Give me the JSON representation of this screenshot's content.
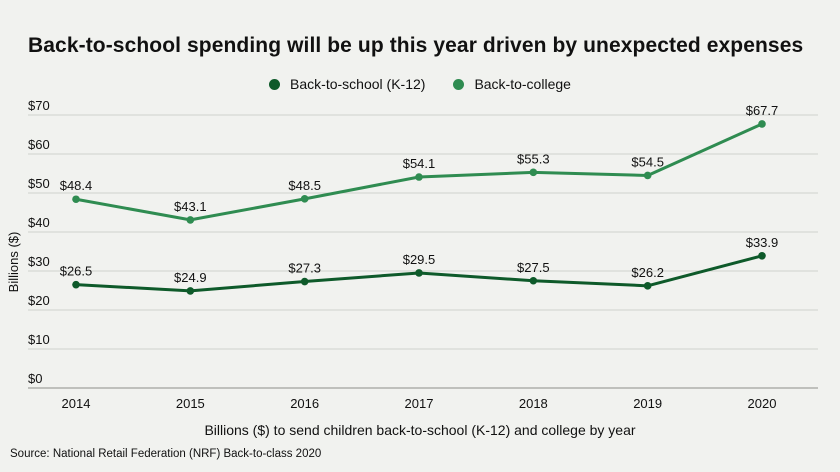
{
  "chart_data": {
    "type": "line",
    "title": "Back-to-school spending will be up this year driven by unexpected expenses",
    "categories": [
      "2014",
      "2015",
      "2016",
      "2017",
      "2018",
      "2019",
      "2020"
    ],
    "series": [
      {
        "name": "Back-to-school (K-12)",
        "color": "#0e5a2a",
        "values": [
          26.5,
          24.9,
          27.3,
          29.5,
          27.5,
          26.2,
          33.9
        ],
        "labels": [
          "$26.5",
          "$24.9",
          "$27.3",
          "$29.5",
          "$27.5",
          "$26.2",
          "$33.9"
        ]
      },
      {
        "name": "Back-to-college",
        "color": "#2f8c51",
        "values": [
          48.4,
          43.1,
          48.5,
          54.1,
          55.3,
          54.5,
          67.7
        ],
        "labels": [
          "$48.4",
          "$43.1",
          "$48.5",
          "$54.1",
          "$55.3",
          "$54.5",
          "$67.7"
        ]
      }
    ],
    "ylabel": "Billions ($)",
    "xlabel": "Billions ($) to send children back-to-school (K-12) and college by year",
    "yticks": [
      0,
      10,
      20,
      30,
      40,
      50,
      60,
      70
    ],
    "ytick_labels": [
      "$0",
      "$10",
      "$20",
      "$30",
      "$40",
      "$50",
      "$60",
      "$70"
    ],
    "ylim": [
      0,
      70
    ],
    "grid": true,
    "legend": "top-center"
  },
  "source": "Source: National Retail Federation (NRF) Back-to-class 2020"
}
